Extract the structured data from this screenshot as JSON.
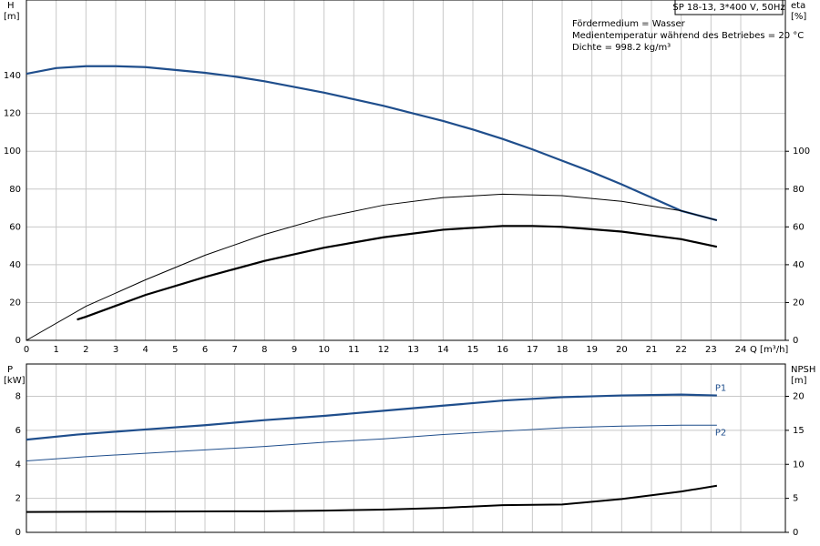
{
  "chart_data": [
    {
      "type": "line",
      "title": "SP 18-13, 3*400 V, 50Hz",
      "annotations": [
        "Fördermedium = Wasser",
        "Medientemperatur während des Betriebes = 20 °C",
        "Dichte = 998.2 kg/m³"
      ],
      "ylabel": [
        "H",
        "[m]"
      ],
      "y2label": [
        "eta",
        "[%]"
      ],
      "xlabel": "Q [m³/h]",
      "xlim": [
        0,
        25.5
      ],
      "xticks": [
        0,
        1,
        2,
        3,
        4,
        5,
        6,
        7,
        8,
        9,
        10,
        11,
        12,
        13,
        14,
        15,
        16,
        17,
        18,
        19,
        20,
        21,
        22,
        23,
        24
      ],
      "ylim": [
        0,
        180
      ],
      "yticks": [
        0,
        20,
        40,
        60,
        80,
        100,
        120,
        140
      ],
      "y2lim": [
        0,
        180
      ],
      "y2ticks": [
        0,
        20,
        40,
        60,
        80,
        100
      ],
      "grid": true,
      "series": [
        {
          "color": "#1f4e8c",
          "line_width": 2.2,
          "axis": "y",
          "x": [
            0,
            1,
            2,
            3,
            4,
            5,
            6,
            7,
            8,
            9,
            10,
            11,
            12,
            13,
            14,
            15,
            16,
            17,
            18,
            19,
            20,
            21,
            22,
            23.2
          ],
          "values": [
            141,
            144,
            145,
            145,
            144.5,
            143,
            141.5,
            139.5,
            137,
            134,
            131,
            127.5,
            124,
            120,
            116,
            111.5,
            106.5,
            101,
            95,
            89,
            82.5,
            75.5,
            68.5,
            63.5
          ]
        },
        {
          "color": "#000000",
          "line_width": 1,
          "axis": "y2",
          "x": [
            0,
            2,
            4,
            6,
            8,
            10,
            12,
            14,
            16,
            18,
            20,
            22,
            23.2
          ],
          "values": [
            0,
            18,
            32,
            45,
            56,
            65,
            71.5,
            75.5,
            77.3,
            76.5,
            73.5,
            68.5,
            63.5
          ]
        },
        {
          "color": "#000000",
          "line_width": 2.2,
          "axis": "y2",
          "x": [
            1.7,
            2,
            4,
            6,
            8,
            10,
            12,
            14,
            16,
            17,
            18,
            20,
            22,
            23.2
          ],
          "values": [
            11,
            12.5,
            24,
            33.5,
            42,
            49,
            54.5,
            58.5,
            60.5,
            60.5,
            60,
            57.5,
            53.5,
            49.5
          ]
        }
      ]
    },
    {
      "type": "line",
      "ylabel": [
        "P",
        "[kW]"
      ],
      "y2label": [
        "NPSH",
        "[m]"
      ],
      "xlim": [
        0,
        25.5
      ],
      "ylim": [
        0,
        9.9
      ],
      "yticks": [
        0,
        2,
        4,
        6,
        8
      ],
      "y2lim": [
        0,
        24.75
      ],
      "y2ticks": [
        0,
        5,
        10,
        15,
        20
      ],
      "grid": true,
      "series": [
        {
          "name": "P1",
          "color": "#1f4e8c",
          "line_width": 2.2,
          "axis": "y",
          "x": [
            0,
            1.7,
            4,
            6,
            8,
            10,
            12,
            14,
            16,
            18,
            20,
            22,
            23.2
          ],
          "values": [
            5.45,
            5.75,
            6.05,
            6.3,
            6.6,
            6.85,
            7.15,
            7.45,
            7.75,
            7.95,
            8.05,
            8.1,
            8.05
          ]
        },
        {
          "name": "P2",
          "color": "#1f4e8c",
          "line_width": 1,
          "axis": "y",
          "x": [
            0,
            2,
            4,
            6,
            8,
            10,
            12,
            14,
            16,
            18,
            20,
            22,
            23.2
          ],
          "values": [
            4.2,
            4.45,
            4.65,
            4.85,
            5.05,
            5.3,
            5.5,
            5.75,
            5.95,
            6.15,
            6.25,
            6.3,
            6.3
          ]
        },
        {
          "color": "#000000",
          "line_width": 2,
          "axis": "y2",
          "x": [
            0,
            4,
            8,
            10,
            12,
            14,
            16,
            18,
            20,
            22,
            23.2
          ],
          "values": [
            3.0,
            3.05,
            3.1,
            3.2,
            3.35,
            3.6,
            4.0,
            4.1,
            4.9,
            6.0,
            6.85
          ]
        }
      ]
    }
  ]
}
